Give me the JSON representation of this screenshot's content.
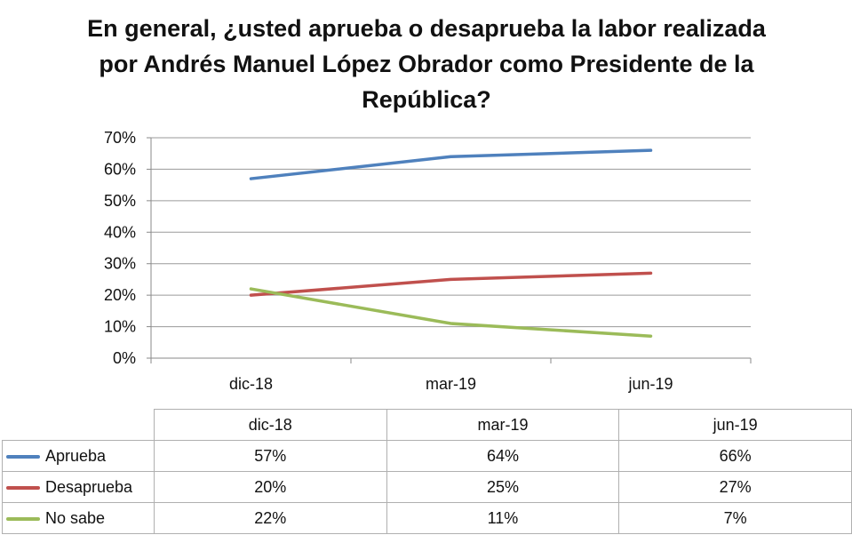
{
  "chart_data": {
    "type": "line",
    "title": "En general, ¿usted aprueba o desaprueba la labor realizada por Andrés Manuel López Obrador como Presidente de la República?",
    "title_lines": [
      "En general, ¿usted aprueba o desaprueba la labor realizada",
      "por Andrés Manuel López Obrador como Presidente de la",
      "República?"
    ],
    "categories": [
      "dic-18",
      "mar-19",
      "jun-19"
    ],
    "y_ticks": [
      "0%",
      "10%",
      "20%",
      "30%",
      "40%",
      "50%",
      "60%",
      "70%"
    ],
    "ylim": [
      0,
      70
    ],
    "grid": true,
    "legend": "table below chart",
    "series": [
      {
        "name": "Aprueba",
        "color": "#4f81bd",
        "values": [
          57,
          64,
          66
        ],
        "labels": [
          "57%",
          "64%",
          "66%"
        ]
      },
      {
        "name": "Desaprueba",
        "color": "#c0504d",
        "values": [
          20,
          25,
          27
        ],
        "labels": [
          "20%",
          "25%",
          "27%"
        ]
      },
      {
        "name": "No sabe",
        "color": "#9bbb59",
        "values": [
          22,
          11,
          7
        ],
        "labels": [
          "22%",
          "11%",
          "7%"
        ]
      }
    ]
  }
}
